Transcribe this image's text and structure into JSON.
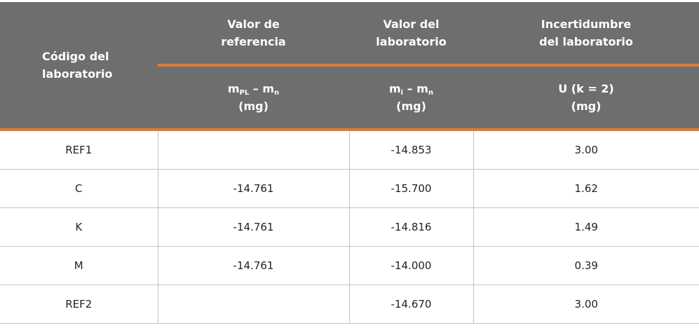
{
  "header": {
    "row_label": [
      "Código del",
      "laboratorio"
    ],
    "groups": [
      [
        "Valor de",
        "referencia"
      ],
      [
        "Valor del",
        "laboratorio"
      ],
      [
        "Incertidumbre",
        "del laboratorio"
      ]
    ],
    "units": [
      {
        "symbol": [
          {
            "text": "m"
          },
          {
            "text": "PL",
            "sub": true
          },
          {
            "text": " – m"
          },
          {
            "text": "n",
            "sub": true
          }
        ],
        "unit": "(mg)"
      },
      {
        "symbol": [
          {
            "text": "m"
          },
          {
            "text": "i",
            "sub": true
          },
          {
            "text": " – m"
          },
          {
            "text": "n",
            "sub": true
          }
        ],
        "unit": "(mg)"
      },
      {
        "symbol": [
          {
            "text": "U (k = 2)"
          }
        ],
        "unit": "(mg)"
      }
    ]
  },
  "table": {
    "rows": [
      [
        "REF1",
        null,
        "-14.853",
        "3.00"
      ],
      [
        "C",
        "-14.761",
        "-15.700",
        "1.62"
      ],
      [
        "K",
        "-14.761",
        "-14.816",
        "1.49"
      ],
      [
        "M",
        "-14.761",
        "-14.000",
        "0.39"
      ],
      [
        "REF2",
        null,
        "-14.670",
        "3.00"
      ]
    ]
  }
}
